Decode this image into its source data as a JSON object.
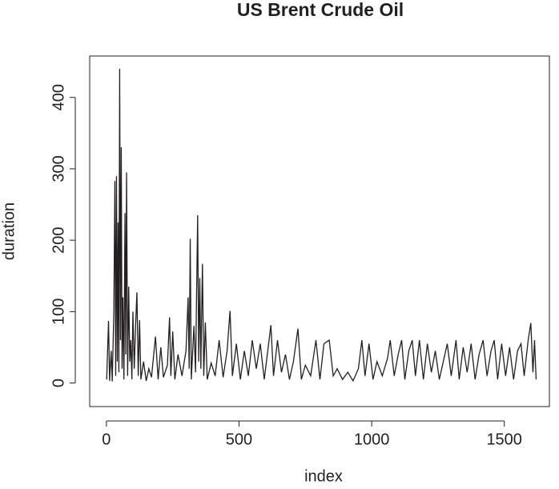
{
  "chart_data": {
    "type": "line",
    "title": "US Brent Crude Oil",
    "x_label": "index",
    "y_label": "duration",
    "color": "#231f20",
    "x": [
      1,
      8,
      12,
      18,
      22,
      28,
      32,
      35,
      38,
      41,
      44,
      47,
      50,
      53,
      56,
      59,
      62,
      66,
      70,
      73,
      76,
      80,
      84,
      88,
      92,
      96,
      100,
      105,
      110,
      115,
      120,
      125,
      130,
      140,
      150,
      160,
      170,
      185,
      195,
      205,
      215,
      230,
      238,
      243,
      250,
      258,
      270,
      285,
      300,
      308,
      312,
      316,
      320,
      330,
      336,
      344,
      348,
      352,
      356,
      362,
      367,
      373,
      380,
      395,
      410,
      425,
      440,
      455,
      466,
      475,
      490,
      505,
      520,
      535,
      550,
      565,
      580,
      595,
      610,
      620,
      630,
      645,
      660,
      675,
      690,
      705,
      722,
      735,
      750,
      770,
      790,
      805,
      820,
      840,
      855,
      870,
      890,
      910,
      930,
      950,
      963,
      975,
      990,
      1005,
      1020,
      1040,
      1060,
      1070,
      1085,
      1100,
      1113,
      1125,
      1140,
      1153,
      1165,
      1180,
      1195,
      1210,
      1225,
      1240,
      1255,
      1270,
      1285,
      1300,
      1318,
      1330,
      1345,
      1360,
      1375,
      1390,
      1405,
      1420,
      1435,
      1450,
      1462,
      1475,
      1490,
      1505,
      1520,
      1535,
      1550,
      1563,
      1575,
      1590,
      1600,
      1608,
      1614,
      1620
    ],
    "values": [
      5,
      87,
      3,
      45,
      2,
      100,
      283,
      10,
      290,
      30,
      225,
      15,
      440,
      60,
      330,
      20,
      120,
      5,
      238,
      40,
      295,
      10,
      135,
      30,
      60,
      5,
      100,
      20,
      80,
      127,
      10,
      88,
      5,
      30,
      3,
      20,
      8,
      65,
      5,
      50,
      8,
      25,
      92,
      10,
      72,
      5,
      40,
      10,
      45,
      120,
      20,
      202,
      5,
      80,
      15,
      235,
      30,
      147,
      20,
      167,
      10,
      85,
      5,
      28,
      10,
      60,
      8,
      45,
      101,
      10,
      55,
      5,
      45,
      10,
      60,
      20,
      55,
      5,
      50,
      81,
      10,
      60,
      15,
      40,
      5,
      30,
      76,
      5,
      25,
      10,
      60,
      5,
      55,
      60,
      10,
      20,
      5,
      15,
      3,
      20,
      60,
      10,
      55,
      5,
      30,
      10,
      35,
      60,
      10,
      40,
      60,
      5,
      45,
      60,
      10,
      60,
      5,
      55,
      15,
      45,
      5,
      30,
      55,
      10,
      60,
      5,
      50,
      15,
      55,
      5,
      40,
      60,
      10,
      45,
      60,
      5,
      55,
      10,
      50,
      5,
      45,
      55,
      10,
      60,
      84,
      15,
      60,
      5
    ],
    "xlim": [
      -63,
      1670
    ],
    "ylim": [
      -33,
      458
    ],
    "xticks": [
      0,
      500,
      1000,
      1500
    ],
    "yticks": [
      0,
      100,
      200,
      300,
      400
    ]
  }
}
